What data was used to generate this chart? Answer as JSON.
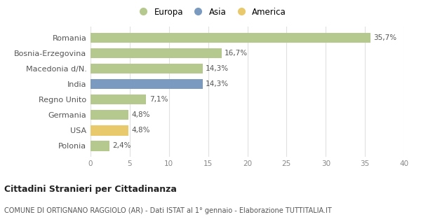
{
  "categories": [
    "Romania",
    "Bosnia-Erzegovina",
    "Macedonia d/N.",
    "India",
    "Regno Unito",
    "Germania",
    "USA",
    "Polonia"
  ],
  "values": [
    35.7,
    16.7,
    14.3,
    14.3,
    7.1,
    4.8,
    4.8,
    2.4
  ],
  "labels": [
    "35,7%",
    "16,7%",
    "14,3%",
    "14,3%",
    "7,1%",
    "4,8%",
    "4,8%",
    "2,4%"
  ],
  "colors": [
    "#b5c98e",
    "#b5c98e",
    "#b5c98e",
    "#7b9abf",
    "#b5c98e",
    "#b5c98e",
    "#e8c96b",
    "#b5c98e"
  ],
  "legend": [
    {
      "label": "Europa",
      "color": "#b5c98e"
    },
    {
      "label": "Asia",
      "color": "#7b9abf"
    },
    {
      "label": "America",
      "color": "#e8c96b"
    }
  ],
  "xlim": [
    0,
    40
  ],
  "xticks": [
    0,
    5,
    10,
    15,
    20,
    25,
    30,
    35,
    40
  ],
  "title": "Cittadini Stranieri per Cittadinanza",
  "subtitle": "COMUNE DI ORTIGNANO RAGGIOLO (AR) - Dati ISTAT al 1° gennaio - Elaborazione TUTTITALIA.IT",
  "background_color": "#ffffff",
  "grid_color": "#e0e0e0",
  "bar_height": 0.65,
  "label_fontsize": 7.5,
  "ytick_fontsize": 8,
  "xtick_fontsize": 7.5,
  "legend_fontsize": 8.5,
  "title_fontsize": 9,
  "subtitle_fontsize": 7
}
